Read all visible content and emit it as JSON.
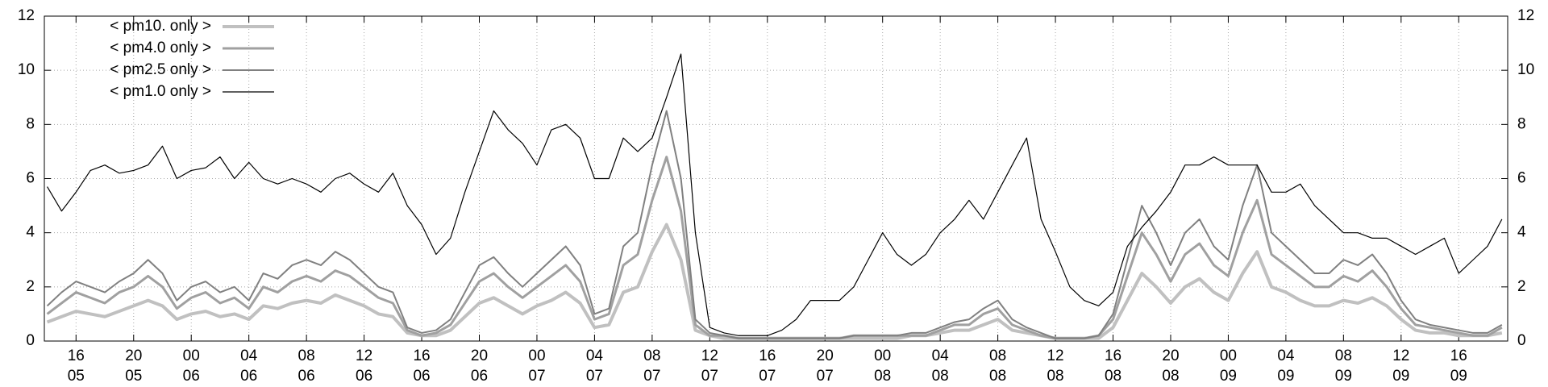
{
  "chart_data": {
    "type": "line",
    "x": [
      "05 14:00",
      "05 15:00",
      "05 16:00",
      "05 17:00",
      "05 18:00",
      "05 19:00",
      "05 20:00",
      "05 21:00",
      "05 22:00",
      "05 23:00",
      "06 00:00",
      "06 01:00",
      "06 02:00",
      "06 03:00",
      "06 04:00",
      "06 05:00",
      "06 06:00",
      "06 07:00",
      "06 08:00",
      "06 09:00",
      "06 10:00",
      "06 11:00",
      "06 12:00",
      "06 13:00",
      "06 14:00",
      "06 15:00",
      "06 16:00",
      "06 17:00",
      "06 18:00",
      "06 19:00",
      "06 20:00",
      "06 21:00",
      "06 22:00",
      "06 23:00",
      "07 00:00",
      "07 01:00",
      "07 02:00",
      "07 03:00",
      "07 04:00",
      "07 05:00",
      "07 06:00",
      "07 07:00",
      "07 08:00",
      "07 09:00",
      "07 10:00",
      "07 11:00",
      "07 12:00",
      "07 13:00",
      "07 14:00",
      "07 15:00",
      "07 16:00",
      "07 17:00",
      "07 18:00",
      "07 19:00",
      "07 20:00",
      "07 21:00",
      "07 22:00",
      "07 23:00",
      "08 00:00",
      "08 01:00",
      "08 02:00",
      "08 03:00",
      "08 04:00",
      "08 05:00",
      "08 06:00",
      "08 07:00",
      "08 08:00",
      "08 09:00",
      "08 10:00",
      "08 11:00",
      "08 12:00",
      "08 13:00",
      "08 14:00",
      "08 15:00",
      "08 16:00",
      "08 17:00",
      "08 18:00",
      "08 19:00",
      "08 20:00",
      "08 21:00",
      "08 22:00",
      "08 23:00",
      "09 00:00",
      "09 01:00",
      "09 02:00",
      "09 03:00",
      "09 04:00",
      "09 05:00",
      "09 06:00",
      "09 07:00",
      "09 08:00",
      "09 09:00",
      "09 10:00",
      "09 11:00",
      "09 12:00",
      "09 13:00",
      "09 14:00",
      "09 15:00",
      "09 16:00",
      "09 17:00",
      "09 18:00",
      "09 19:00"
    ],
    "series": [
      {
        "name": "< pm10. only >",
        "color": "#c0c0c0",
        "width": 4,
        "values": [
          0.7,
          0.9,
          1.1,
          1.0,
          0.9,
          1.1,
          1.3,
          1.5,
          1.3,
          0.8,
          1.0,
          1.1,
          0.9,
          1.0,
          0.8,
          1.3,
          1.2,
          1.4,
          1.5,
          1.4,
          1.7,
          1.5,
          1.3,
          1.0,
          0.9,
          0.3,
          0.2,
          0.2,
          0.4,
          0.9,
          1.4,
          1.6,
          1.3,
          1.0,
          1.3,
          1.5,
          1.8,
          1.4,
          0.5,
          0.6,
          1.8,
          2.0,
          3.3,
          4.3,
          3.0,
          0.4,
          0.2,
          0.1,
          0.1,
          0.1,
          0.1,
          0.1,
          0.1,
          0.1,
          0.1,
          0.1,
          0.1,
          0.1,
          0.1,
          0.1,
          0.2,
          0.2,
          0.3,
          0.4,
          0.4,
          0.6,
          0.8,
          0.4,
          0.3,
          0.2,
          0.1,
          0.1,
          0.1,
          0.1,
          0.5,
          1.5,
          2.5,
          2.0,
          1.4,
          2.0,
          2.3,
          1.8,
          1.5,
          2.5,
          3.3,
          2.0,
          1.8,
          1.5,
          1.3,
          1.3,
          1.5,
          1.4,
          1.6,
          1.3,
          0.8,
          0.4,
          0.3,
          0.3,
          0.2,
          0.2,
          0.2,
          0.3
        ]
      },
      {
        "name": "< pm4.0 only >",
        "color": "#a0a0a0",
        "width": 3,
        "values": [
          1.0,
          1.4,
          1.8,
          1.6,
          1.4,
          1.8,
          2.0,
          2.4,
          2.0,
          1.2,
          1.6,
          1.8,
          1.4,
          1.6,
          1.2,
          2.0,
          1.8,
          2.2,
          2.4,
          2.2,
          2.6,
          2.4,
          2.0,
          1.6,
          1.4,
          0.4,
          0.2,
          0.3,
          0.6,
          1.4,
          2.2,
          2.5,
          2.0,
          1.6,
          2.0,
          2.4,
          2.8,
          2.2,
          0.8,
          1.0,
          2.8,
          3.2,
          5.2,
          6.8,
          4.8,
          0.6,
          0.2,
          0.2,
          0.1,
          0.1,
          0.1,
          0.1,
          0.1,
          0.1,
          0.1,
          0.1,
          0.2,
          0.2,
          0.2,
          0.2,
          0.2,
          0.2,
          0.4,
          0.6,
          0.6,
          1.0,
          1.2,
          0.6,
          0.4,
          0.2,
          0.1,
          0.1,
          0.1,
          0.2,
          0.8,
          2.4,
          4.0,
          3.2,
          2.2,
          3.2,
          3.6,
          2.8,
          2.4,
          4.0,
          5.2,
          3.2,
          2.8,
          2.4,
          2.0,
          2.0,
          2.4,
          2.2,
          2.6,
          2.0,
          1.2,
          0.6,
          0.5,
          0.4,
          0.3,
          0.2,
          0.2,
          0.5
        ]
      },
      {
        "name": "< pm2.5 only >",
        "color": "#808080",
        "width": 2,
        "values": [
          1.3,
          1.8,
          2.2,
          2.0,
          1.8,
          2.2,
          2.5,
          3.0,
          2.5,
          1.5,
          2.0,
          2.2,
          1.8,
          2.0,
          1.5,
          2.5,
          2.3,
          2.8,
          3.0,
          2.8,
          3.3,
          3.0,
          2.5,
          2.0,
          1.8,
          0.5,
          0.3,
          0.4,
          0.8,
          1.8,
          2.8,
          3.1,
          2.5,
          2.0,
          2.5,
          3.0,
          3.5,
          2.8,
          1.0,
          1.2,
          3.5,
          4.0,
          6.5,
          8.5,
          6.0,
          0.8,
          0.3,
          0.2,
          0.1,
          0.1,
          0.1,
          0.1,
          0.1,
          0.1,
          0.1,
          0.1,
          0.2,
          0.2,
          0.2,
          0.2,
          0.3,
          0.3,
          0.5,
          0.7,
          0.8,
          1.2,
          1.5,
          0.8,
          0.5,
          0.3,
          0.1,
          0.1,
          0.1,
          0.2,
          1.0,
          3.0,
          5.0,
          4.0,
          2.8,
          4.0,
          4.5,
          3.5,
          3.0,
          5.0,
          6.5,
          4.0,
          3.5,
          3.0,
          2.5,
          2.5,
          3.0,
          2.8,
          3.2,
          2.5,
          1.5,
          0.8,
          0.6,
          0.5,
          0.4,
          0.3,
          0.3,
          0.6
        ]
      },
      {
        "name": "< pm1.0 only >",
        "color": "#000000",
        "width": 1.2,
        "values": [
          5.7,
          4.8,
          5.5,
          6.3,
          6.5,
          6.2,
          6.3,
          6.5,
          7.2,
          6.0,
          6.3,
          6.4,
          6.8,
          6.0,
          6.6,
          6.0,
          5.8,
          6.0,
          5.8,
          5.5,
          6.0,
          6.2,
          5.8,
          5.5,
          6.2,
          5.0,
          4.3,
          3.2,
          3.8,
          5.5,
          7.0,
          8.5,
          7.8,
          7.3,
          6.5,
          7.8,
          8.0,
          7.5,
          6.0,
          6.0,
          7.5,
          7.0,
          7.5,
          9.0,
          10.6,
          4.0,
          0.5,
          0.3,
          0.2,
          0.2,
          0.2,
          0.4,
          0.8,
          1.5,
          1.5,
          1.5,
          2.0,
          3.0,
          4.0,
          3.2,
          2.8,
          3.2,
          4.0,
          4.5,
          5.2,
          4.5,
          5.5,
          6.5,
          7.5,
          4.5,
          3.3,
          2.0,
          1.5,
          1.3,
          1.8,
          3.5,
          4.2,
          4.8,
          5.5,
          6.5,
          6.5,
          6.8,
          6.5,
          6.5,
          6.5,
          5.5,
          5.5,
          5.8,
          5.0,
          4.5,
          4.0,
          4.0,
          3.8,
          3.8,
          3.5,
          3.2,
          3.5,
          3.8,
          2.5,
          3.0,
          3.5,
          4.5
        ]
      }
    ],
    "xlim": [
      "05 13:48",
      "09 19:24"
    ],
    "xticks": [
      {
        "value": "05 16:00",
        "label": [
          "16",
          "05"
        ]
      },
      {
        "value": "05 20:00",
        "label": [
          "20",
          "05"
        ]
      },
      {
        "value": "06 00:00",
        "label": [
          "00",
          "06"
        ]
      },
      {
        "value": "06 04:00",
        "label": [
          "04",
          "06"
        ]
      },
      {
        "value": "06 08:00",
        "label": [
          "08",
          "06"
        ]
      },
      {
        "value": "06 12:00",
        "label": [
          "12",
          "06"
        ]
      },
      {
        "value": "06 16:00",
        "label": [
          "16",
          "06"
        ]
      },
      {
        "value": "06 20:00",
        "label": [
          "20",
          "06"
        ]
      },
      {
        "value": "07 00:00",
        "label": [
          "00",
          "07"
        ]
      },
      {
        "value": "07 04:00",
        "label": [
          "04",
          "07"
        ]
      },
      {
        "value": "07 08:00",
        "label": [
          "08",
          "07"
        ]
      },
      {
        "value": "07 12:00",
        "label": [
          "12",
          "07"
        ]
      },
      {
        "value": "07 16:00",
        "label": [
          "16",
          "07"
        ]
      },
      {
        "value": "07 20:00",
        "label": [
          "20",
          "07"
        ]
      },
      {
        "value": "08 00:00",
        "label": [
          "00",
          "08"
        ]
      },
      {
        "value": "08 04:00",
        "label": [
          "04",
          "08"
        ]
      },
      {
        "value": "08 08:00",
        "label": [
          "08",
          "08"
        ]
      },
      {
        "value": "08 12:00",
        "label": [
          "12",
          "08"
        ]
      },
      {
        "value": "08 16:00",
        "label": [
          "16",
          "08"
        ]
      },
      {
        "value": "08 20:00",
        "label": [
          "20",
          "08"
        ]
      },
      {
        "value": "09 00:00",
        "label": [
          "00",
          "09"
        ]
      },
      {
        "value": "09 04:00",
        "label": [
          "04",
          "09"
        ]
      },
      {
        "value": "09 08:00",
        "label": [
          "08",
          "09"
        ]
      },
      {
        "value": "09 12:00",
        "label": [
          "12",
          "09"
        ]
      },
      {
        "value": "09 16:00",
        "label": [
          "16",
          "09"
        ]
      }
    ],
    "ylim": [
      0,
      12
    ],
    "yticks": [
      0,
      2,
      4,
      6,
      8,
      10,
      12
    ],
    "y_labels_both_sides": true,
    "grid": true,
    "legend": "upper-left"
  }
}
